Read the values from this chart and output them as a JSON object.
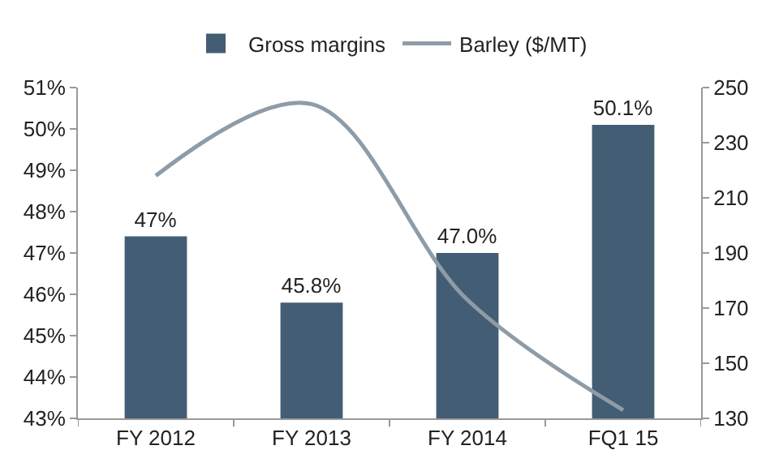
{
  "chart_data": {
    "type": "bar",
    "categories": [
      "FY 2012",
      "FY 2013",
      "FY 2014",
      "FQ1 15"
    ],
    "series": [
      {
        "name": "Gross margins",
        "color": "#435d74",
        "values": [
          47.4,
          45.8,
          47.0,
          50.1
        ],
        "value_labels": [
          "47%",
          "45.8%",
          "47.0%",
          "50.1%"
        ]
      },
      {
        "name": "Barley ($/MT)",
        "type": "line",
        "axis": "y2",
        "color": "#8e9ca8",
        "values": [
          218,
          244,
          173,
          133
        ]
      }
    ],
    "ylim": [
      43,
      51
    ],
    "yticks": [
      {
        "value": 43,
        "label": "43%"
      },
      {
        "value": 44,
        "label": "44%"
      },
      {
        "value": 45,
        "label": "45%"
      },
      {
        "value": 46,
        "label": "46%"
      },
      {
        "value": 47,
        "label": "47%"
      },
      {
        "value": 48,
        "label": "48%"
      },
      {
        "value": 49,
        "label": "49%"
      },
      {
        "value": 50,
        "label": "50%"
      },
      {
        "value": 51,
        "label": "51%"
      }
    ],
    "y2lim": [
      130,
      250
    ],
    "y2ticks": [
      130,
      150,
      170,
      190,
      210,
      230,
      250
    ],
    "grid": false,
    "legend": "top",
    "marker": "none"
  }
}
